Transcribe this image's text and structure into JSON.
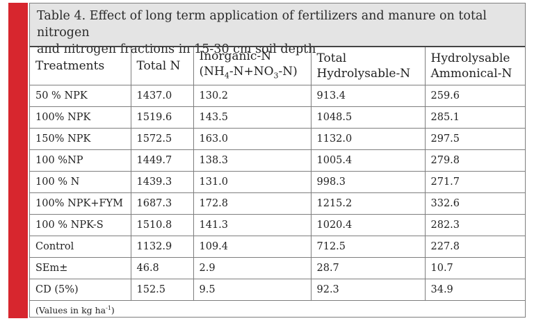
{
  "caption": "Table 4. Effect of long term application of fertilizers and manure on total nitrogen\nand nitrogen fractions in 15-30 cm soil depth",
  "headers": {
    "treatments": "Treatments",
    "total_n": "Total N",
    "inorganic_line1": "Inorganic-N",
    "inorganic_formula_open": "(NH",
    "inorganic_sub1": "4",
    "inorganic_formula_mid": "-N+NO",
    "inorganic_sub2": "3",
    "inorganic_formula_close": "-N)",
    "total_hydro_line1": "Total",
    "total_hydro_line2": "Hydrolysable-N",
    "hydro_amm_line1": "Hydrolysable",
    "hydro_amm_line2": "Ammonical-N"
  },
  "rows": [
    {
      "treatment": "50 % NPK",
      "total_n": "1437.0",
      "inorganic_n": "130.2",
      "total_hydrolysable_n": "913.4",
      "hydrolysable_ammonical_n": "259.6"
    },
    {
      "treatment": "100% NPK",
      "total_n": "1519.6",
      "inorganic_n": "143.5",
      "total_hydrolysable_n": "1048.5",
      "hydrolysable_ammonical_n": "285.1"
    },
    {
      "treatment": "150% NPK",
      "total_n": "1572.5",
      "inorganic_n": "163.0",
      "total_hydrolysable_n": "1132.0",
      "hydrolysable_ammonical_n": "297.5"
    },
    {
      "treatment": "100 %NP",
      "total_n": "1449.7",
      "inorganic_n": "138.3",
      "total_hydrolysable_n": "1005.4",
      "hydrolysable_ammonical_n": "279.8"
    },
    {
      "treatment": "100 % N",
      "total_n": "1439.3",
      "inorganic_n": "131.0",
      "total_hydrolysable_n": "998.3",
      "hydrolysable_ammonical_n": "271.7"
    },
    {
      "treatment": "100% NPK+FYM",
      "total_n": "1687.3",
      "inorganic_n": "172.8",
      "total_hydrolysable_n": "1215.2",
      "hydrolysable_ammonical_n": "332.6"
    },
    {
      "treatment": "100 % NPK-S",
      "total_n": "1510.8",
      "inorganic_n": "141.3",
      "total_hydrolysable_n": "1020.4",
      "hydrolysable_ammonical_n": "282.3"
    },
    {
      "treatment": "Control",
      "total_n": "1132.9",
      "inorganic_n": "109.4",
      "total_hydrolysable_n": "712.5",
      "hydrolysable_ammonical_n": "227.8"
    },
    {
      "treatment": "SEm±",
      "total_n": "46.8",
      "inorganic_n": "2.9",
      "total_hydrolysable_n": "28.7",
      "hydrolysable_ammonical_n": "10.7"
    },
    {
      "treatment": "CD (5%)",
      "total_n": "152.5",
      "inorganic_n": "9.5",
      "total_hydrolysable_n": "92.3",
      "hydrolysable_ammonical_n": "34.9"
    }
  ],
  "note": {
    "prefix": "(Values in kg ha",
    "superscript": "-1",
    "suffix": ")"
  },
  "colors": {
    "accent_bar": "#d7262e",
    "caption_background": "#e4e4e4",
    "border": "#7d7d7d"
  }
}
